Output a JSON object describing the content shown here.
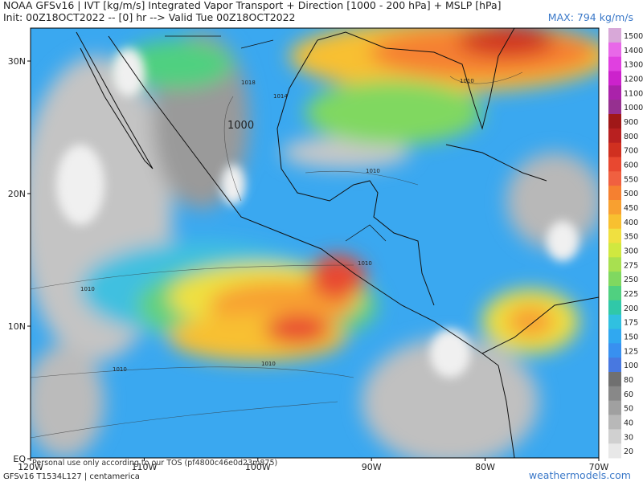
{
  "header": {
    "title": "NOAA GFSv16 | IVT [kg/m/s] Integrated Vapor Transport + Direction [1000 - 200 hPa] + MSLP [hPa]",
    "subtitle": "Init: 00Z18OCT2022 -- [0] hr --> Valid Tue 00Z18OCT2022",
    "max": "MAX: 794 kg/m/s"
  },
  "axes": {
    "lat_ticks": [
      {
        "value": 30,
        "label": "30N"
      },
      {
        "value": 20,
        "label": "20N"
      },
      {
        "value": 10,
        "label": "10N"
      },
      {
        "value": 0,
        "label": "EQ"
      }
    ],
    "lon_ticks": [
      {
        "value": -120,
        "label": "120W"
      },
      {
        "value": -110,
        "label": "110W"
      },
      {
        "value": -100,
        "label": "100W"
      },
      {
        "value": -90,
        "label": "90W"
      },
      {
        "value": -80,
        "label": "80W"
      },
      {
        "value": -70,
        "label": "70W"
      }
    ]
  },
  "colorbar": {
    "levels": [
      1500,
      1400,
      1300,
      1200,
      1100,
      1000,
      900,
      800,
      700,
      600,
      550,
      500,
      450,
      400,
      350,
      300,
      275,
      250,
      225,
      200,
      175,
      150,
      125,
      100,
      80,
      60,
      50,
      40,
      30,
      20
    ],
    "colors": [
      "#d8a8d8",
      "#e868e8",
      "#e040e0",
      "#cc22cc",
      "#aa22aa",
      "#963090",
      "#a01818",
      "#b82020",
      "#d03020",
      "#e84830",
      "#f06040",
      "#f58030",
      "#f8a030",
      "#f8c030",
      "#f0e040",
      "#d0e840",
      "#a8e050",
      "#80d860",
      "#50d080",
      "#30c8a8",
      "#30c0e0",
      "#30a8f0",
      "#3890f0",
      "#4878e0",
      "#707070",
      "#888888",
      "#a0a0a0",
      "#b8b8b8",
      "#d0d0d0",
      "#e8e8e8"
    ]
  },
  "isobars": [
    "1010",
    "1014",
    "1018",
    "1000",
    "1010",
    "1010",
    "1010",
    "1010",
    "1010"
  ],
  "footer": {
    "disclaimer": "Personal use only according to our TOS (pf4800c46e0d23m875)",
    "model": "GFSv16 T1534L127 | centamerica",
    "site": "weathermodels.com"
  }
}
